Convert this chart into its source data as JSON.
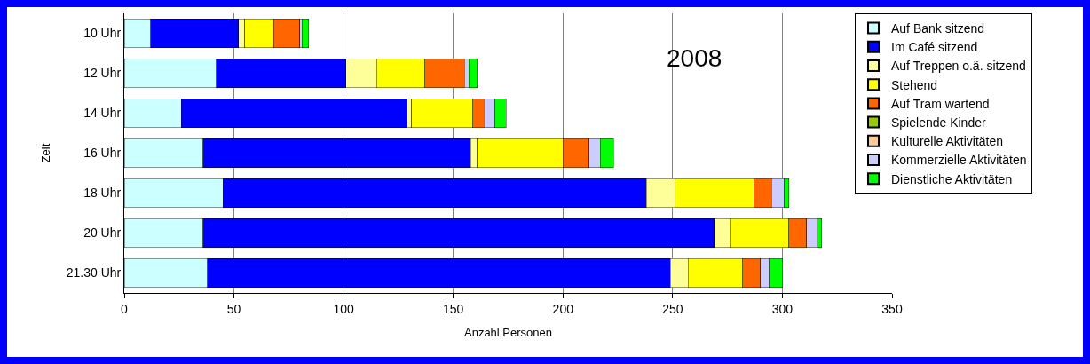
{
  "chart_data": {
    "type": "bar",
    "orientation": "horizontal",
    "stacked": true,
    "xlabel": "Anzahl Personen",
    "ylabel": "Zeit",
    "annotations": [
      "2008"
    ],
    "categories": [
      "10 Uhr",
      "12 Uhr",
      "14 Uhr",
      "16 Uhr",
      "18 Uhr",
      "20 Uhr",
      "21.30 Uhr"
    ],
    "series": [
      {
        "name": "Auf Bank sitzend",
        "color": "#ccffff",
        "values": [
          12,
          42,
          26,
          36,
          45,
          36,
          38
        ]
      },
      {
        "name": "Im Café sitzend",
        "color": "#0000ff",
        "values": [
          40,
          59,
          103,
          122,
          193,
          233,
          211
        ]
      },
      {
        "name": "Auf Treppen o.ä. sitzend",
        "color": "#ffff99",
        "values": [
          3,
          14,
          2,
          3,
          13,
          7,
          8
        ]
      },
      {
        "name": "Stehend",
        "color": "#ffff00",
        "values": [
          13,
          22,
          28,
          39,
          36,
          27,
          25
        ]
      },
      {
        "name": "Auf Tram wartend",
        "color": "#ff6600",
        "values": [
          12,
          18,
          5,
          12,
          8,
          8,
          8
        ]
      },
      {
        "name": "Spielende Kinder",
        "color": "#99cc00",
        "values": [
          0,
          0,
          0,
          0,
          0,
          0,
          0
        ]
      },
      {
        "name": "Kulturelle Aktivitäten",
        "color": "#ffcc99",
        "values": [
          0,
          0,
          0,
          0,
          0,
          0,
          0
        ]
      },
      {
        "name": "Kommerzielle Aktivitäten",
        "color": "#ccccff",
        "values": [
          1,
          2,
          5,
          5,
          6,
          5,
          4
        ]
      },
      {
        "name": "Dienstliche Aktivitäten",
        "color": "#00ff00",
        "values": [
          3,
          4,
          5,
          6,
          2,
          2,
          6
        ]
      }
    ],
    "xlim": [
      0,
      350
    ],
    "xticks": [
      0,
      50,
      100,
      150,
      200,
      250,
      300,
      350
    ],
    "grid": "x",
    "legend": "right"
  }
}
